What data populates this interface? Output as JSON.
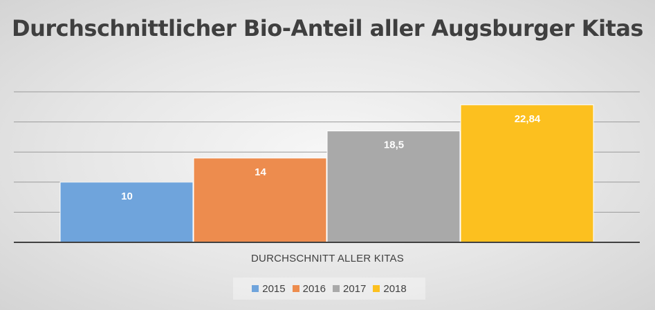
{
  "chart_data": {
    "type": "bar",
    "title": "Durchschnittlicher Bio-Anteil aller Augsburger Kitas",
    "categories": [
      "DURCHSCHNITT ALLER KITAS"
    ],
    "series": [
      {
        "name": "2015",
        "values": [
          10
        ],
        "label": "10",
        "color": "#6fa4dc"
      },
      {
        "name": "2016",
        "values": [
          14
        ],
        "label": "14",
        "color": "#ed8c4e"
      },
      {
        "name": "2017",
        "values": [
          18.5
        ],
        "label": "18,5",
        "color": "#a9a9a9"
      },
      {
        "name": "2018",
        "values": [
          22.84
        ],
        "label": "22,84",
        "color": "#fcc01f"
      }
    ],
    "ylim": [
      0,
      25
    ],
    "grid": true,
    "legend_position": "bottom",
    "data_label_color": "#ffffff"
  }
}
